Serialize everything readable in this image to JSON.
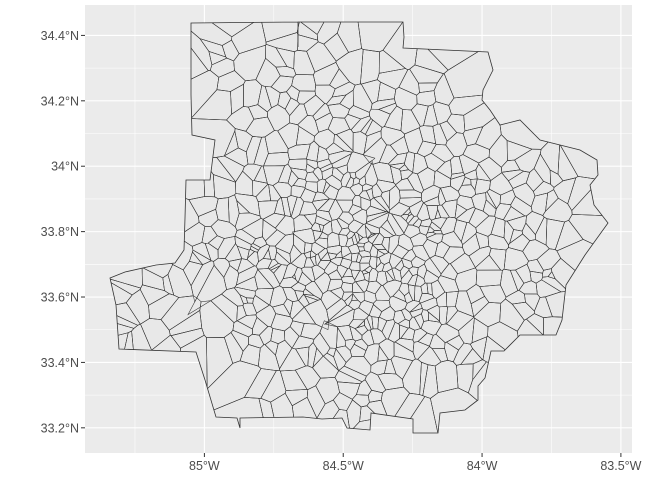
{
  "map": {
    "type": "choropleth-outline",
    "projection": "geographic",
    "grid": true,
    "panel_color": "#ebebeb",
    "grid_color": "#ffffff",
    "region_fill": "#e8e8e8",
    "region_stroke": "#333333",
    "x_ticks": [
      {
        "value": -85.0,
        "label": "85°W"
      },
      {
        "value": -84.5,
        "label": "84.5°W"
      },
      {
        "value": -84.0,
        "label": "84°W"
      },
      {
        "value": -83.5,
        "label": "83.5°W"
      }
    ],
    "y_ticks": [
      {
        "value": 34.4,
        "label": "34.4°N"
      },
      {
        "value": 34.2,
        "label": "34.2°N"
      },
      {
        "value": 34.0,
        "label": "34°N"
      },
      {
        "value": 33.8,
        "label": "33.8°N"
      },
      {
        "value": 33.6,
        "label": "33.6°N"
      },
      {
        "value": 33.4,
        "label": "33.4°N"
      },
      {
        "value": 33.2,
        "label": "33.2°N"
      }
    ],
    "xlim": [
      -85.43,
      -83.46
    ],
    "ylim": [
      33.123,
      34.493
    ],
    "tick_color": "#333333"
  }
}
